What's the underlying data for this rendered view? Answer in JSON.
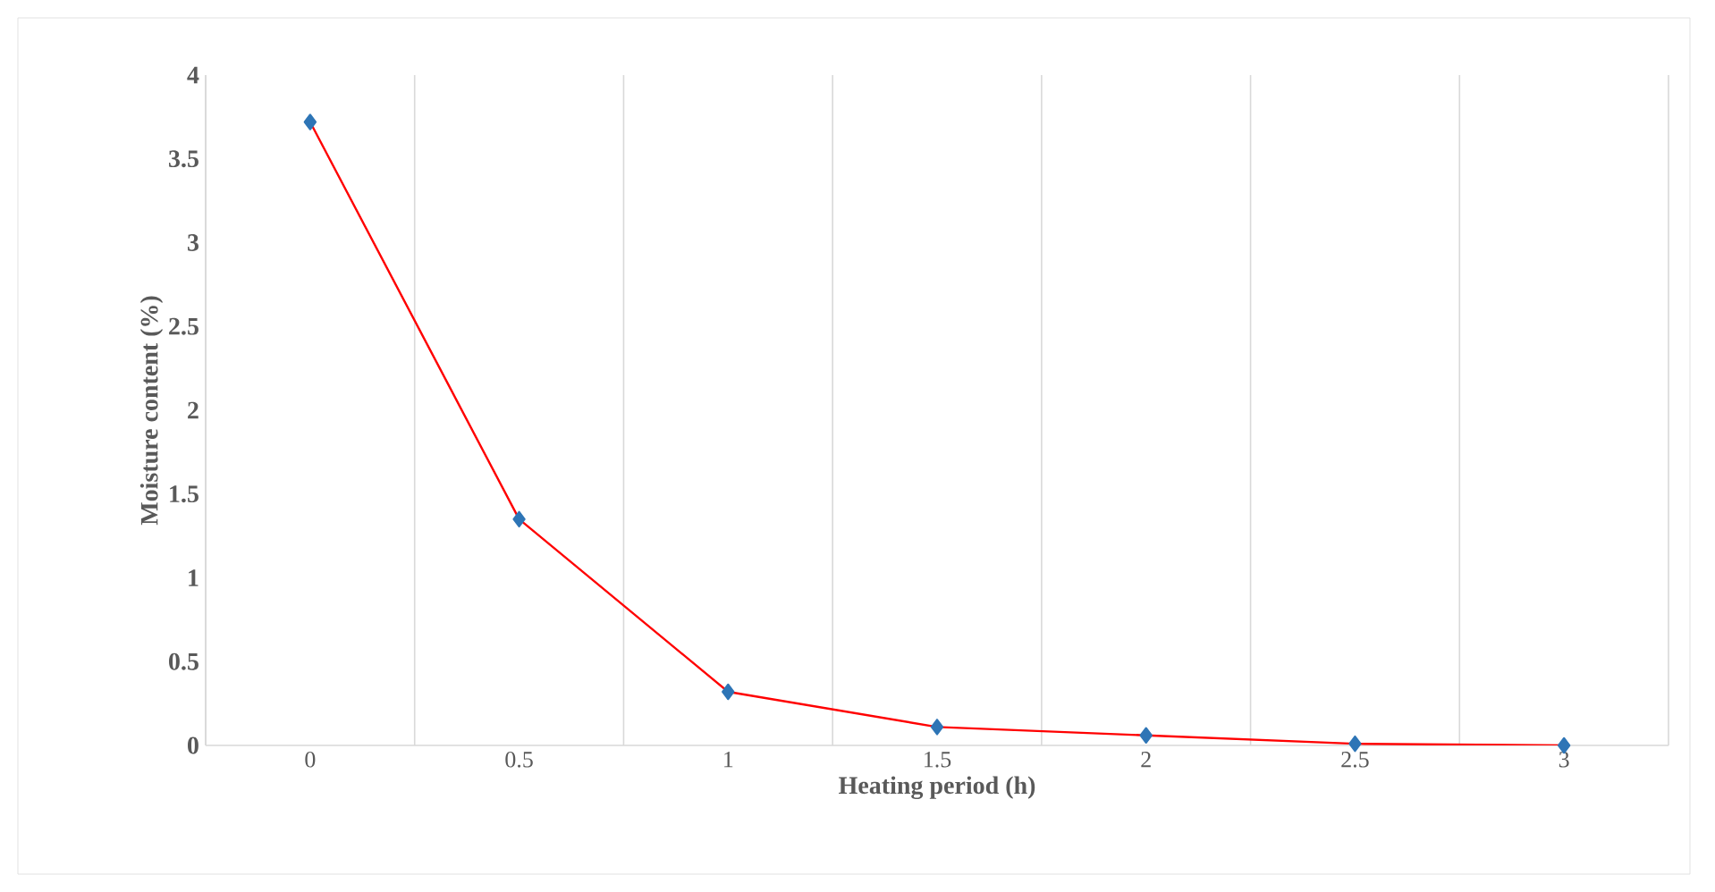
{
  "chart_data": {
    "type": "line",
    "xlabel": "Heating period (h)",
    "ylabel": "Moisture content (%)",
    "categories": [
      "0",
      "0.5",
      "1",
      "1.5",
      "2",
      "2.5",
      "3"
    ],
    "values": [
      3.72,
      1.35,
      0.32,
      0.11,
      0.06,
      0.01,
      0.0
    ],
    "color": "#ff0000",
    "marker": "diamond",
    "line_style": "solid",
    "ylim": [
      0,
      4
    ],
    "yticks": [
      0,
      0.5,
      1,
      1.5,
      2,
      2.5,
      3,
      3.5,
      4
    ],
    "grid": "x"
  }
}
